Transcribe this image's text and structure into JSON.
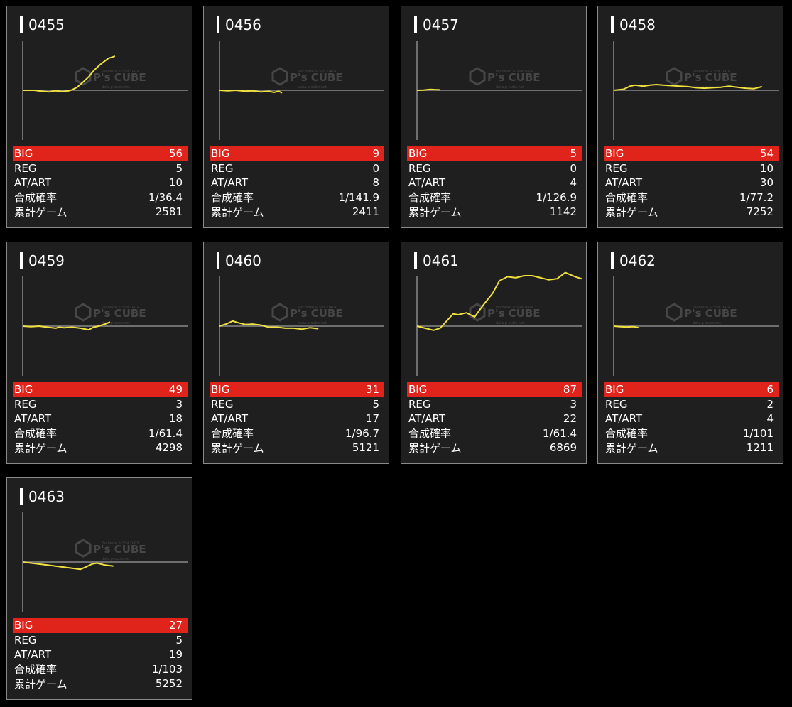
{
  "watermark": {
    "brand": "P's CUBE",
    "top_line": "Pachinko & Slot DATA",
    "bottom_line": "data.p-cube.net"
  },
  "colors": {
    "background": "#000000",
    "card": "#1f1f1f",
    "big_row": "#e0241c",
    "line": "#f0e040",
    "axis": "#8a8a8a"
  },
  "labels": {
    "big": "BIG",
    "reg": "REG",
    "at": "AT/ART",
    "rate": "合成確率",
    "games": "累計ゲーム"
  },
  "machines": [
    {
      "id": "0455",
      "big": "56",
      "reg": "5",
      "at": "10",
      "rate": "1/36.4",
      "games": "2581",
      "chart_data": {
        "type": "line",
        "x": [
          0,
          0.07,
          0.12,
          0.16,
          0.2,
          0.24,
          0.28,
          0.3,
          0.33,
          0.36,
          0.4,
          0.43,
          0.47,
          0.52,
          0.56
        ],
        "y": [
          0,
          0,
          -1,
          -1.5,
          -0.5,
          -1.2,
          -0.5,
          0.5,
          3,
          7,
          13,
          19,
          25,
          31,
          33
        ]
      }
    },
    {
      "id": "0456",
      "big": "9",
      "reg": "0",
      "at": "8",
      "rate": "1/141.9",
      "games": "2411",
      "chart_data": {
        "type": "line",
        "x": [
          0,
          0.05,
          0.1,
          0.15,
          0.2,
          0.25,
          0.3,
          0.33,
          0.36,
          0.38
        ],
        "y": [
          0,
          -0.5,
          0,
          -0.8,
          -0.5,
          -1.5,
          -1,
          -2,
          -1,
          -2.5
        ]
      }
    },
    {
      "id": "0457",
      "big": "5",
      "reg": "0",
      "at": "4",
      "rate": "1/126.9",
      "games": "1142",
      "chart_data": {
        "type": "line",
        "x": [
          0,
          0.04,
          0.08,
          0.11,
          0.14
        ],
        "y": [
          0,
          0.2,
          0.8,
          0.6,
          0.4
        ]
      }
    },
    {
      "id": "0458",
      "big": "54",
      "reg": "10",
      "at": "30",
      "rate": "1/77.2",
      "games": "7252",
      "chart_data": {
        "type": "line",
        "x": [
          0,
          0.06,
          0.1,
          0.13,
          0.18,
          0.22,
          0.26,
          0.3,
          0.35,
          0.4,
          0.45,
          0.5,
          0.55,
          0.6,
          0.65,
          0.7,
          0.75,
          0.8,
          0.85,
          0.9
        ],
        "y": [
          0,
          1,
          4,
          5,
          4,
          5,
          5.5,
          5,
          4.5,
          4,
          3.5,
          2.5,
          2,
          2.5,
          3,
          4,
          3,
          2,
          1.5,
          3.5
        ]
      }
    },
    {
      "id": "0459",
      "big": "49",
      "reg": "3",
      "at": "18",
      "rate": "1/61.4",
      "games": "4298",
      "chart_data": {
        "type": "line",
        "x": [
          0,
          0.05,
          0.1,
          0.15,
          0.2,
          0.22,
          0.25,
          0.3,
          0.35,
          0.4,
          0.43,
          0.46,
          0.5,
          0.53
        ],
        "y": [
          0,
          -0.5,
          0,
          -1,
          -2,
          -1,
          -1.5,
          -1,
          -2,
          -3.5,
          -1,
          0,
          2,
          4
        ]
      }
    },
    {
      "id": "0460",
      "big": "31",
      "reg": "5",
      "at": "17",
      "rate": "1/96.7",
      "games": "5121",
      "chart_data": {
        "type": "line",
        "x": [
          0,
          0.04,
          0.08,
          0.12,
          0.16,
          0.2,
          0.25,
          0.3,
          0.35,
          0.4,
          0.45,
          0.5,
          0.55,
          0.6
        ],
        "y": [
          0,
          2,
          5,
          3,
          1.5,
          2,
          1,
          -1,
          -1,
          -2,
          -2,
          -3,
          -1.5,
          -2.5
        ]
      }
    },
    {
      "id": "0461",
      "big": "87",
      "reg": "3",
      "at": "22",
      "rate": "1/61.4",
      "games": "6869",
      "chart_data": {
        "type": "line",
        "x": [
          0,
          0.05,
          0.1,
          0.14,
          0.18,
          0.22,
          0.25,
          0.3,
          0.35,
          0.4,
          0.46,
          0.5,
          0.55,
          0.6,
          0.65,
          0.7,
          0.75,
          0.8,
          0.85,
          0.9,
          0.96,
          1
        ],
        "y": [
          0,
          -2,
          -4,
          -2,
          5,
          12,
          11,
          13,
          9,
          20,
          32,
          44,
          48,
          47,
          49,
          49,
          47,
          45,
          46,
          52,
          48,
          46
        ]
      }
    },
    {
      "id": "0462",
      "big": "6",
      "reg": "2",
      "at": "4",
      "rate": "1/101",
      "games": "1211",
      "chart_data": {
        "type": "line",
        "x": [
          0,
          0.04,
          0.08,
          0.12,
          0.15
        ],
        "y": [
          0,
          -0.5,
          -0.8,
          -0.5,
          -1.5
        ]
      }
    },
    {
      "id": "0463",
      "big": "27",
      "reg": "5",
      "at": "19",
      "rate": "1/103",
      "games": "5252",
      "chart_data": {
        "type": "line",
        "x": [
          0,
          0.05,
          0.1,
          0.15,
          0.2,
          0.25,
          0.3,
          0.35,
          0.38,
          0.42,
          0.45,
          0.5,
          0.55
        ],
        "y": [
          0,
          -1,
          -2,
          -3,
          -4,
          -5,
          -6,
          -7,
          -5,
          -2,
          -1,
          -3,
          -4
        ]
      }
    }
  ]
}
